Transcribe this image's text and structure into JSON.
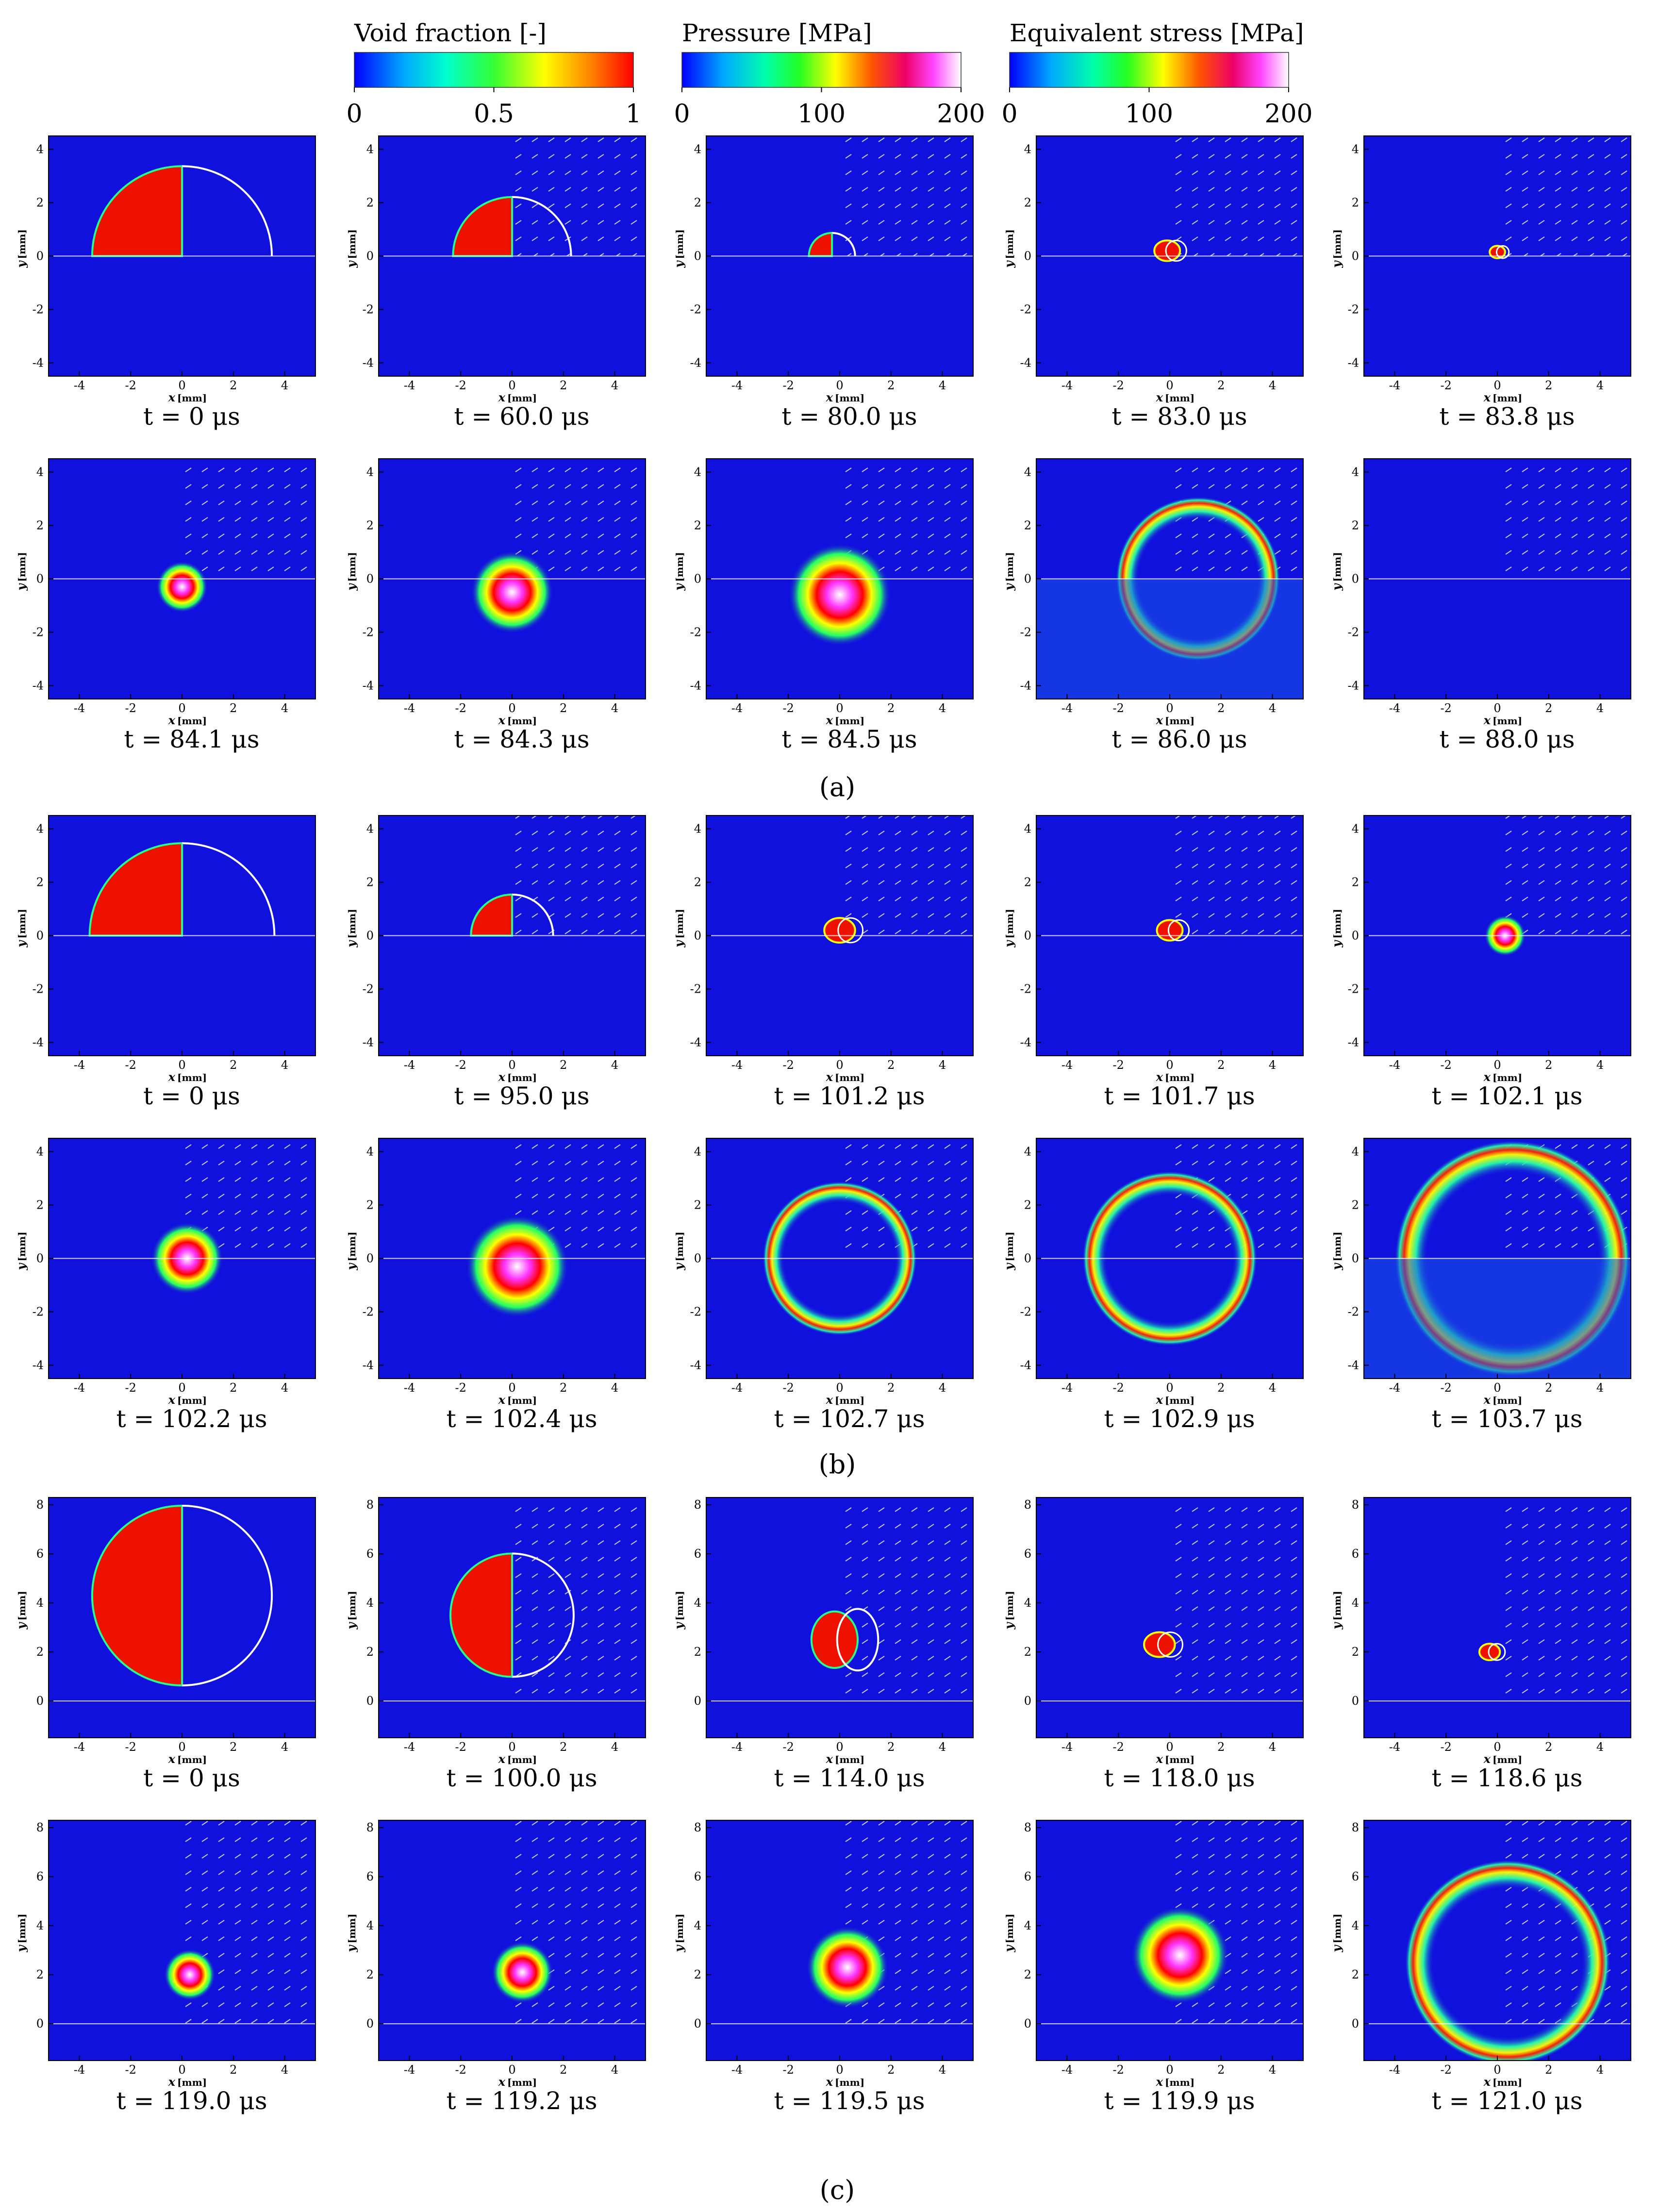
{
  "colorbars": [
    {
      "title": "Void fraction [-]",
      "ticks": [
        "0",
        "0.5",
        "1"
      ],
      "scale": "void"
    },
    {
      "title": "Pressure [MPa]",
      "ticks": [
        "0",
        "100",
        "200"
      ],
      "scale": "pressure"
    },
    {
      "title": "Equivalent stress [MPa]",
      "ticks": [
        "0",
        "100",
        "200"
      ],
      "scale": "stress"
    }
  ],
  "axis": {
    "x_label": "x",
    "y_label": "y",
    "unit": "[mm]"
  },
  "groups": [
    {
      "label": "(a)",
      "letter": "a",
      "x_ticks": [
        "-4",
        "-2",
        "0",
        "2",
        "4"
      ],
      "y_ticks": [
        "4",
        "2",
        "0",
        "-2",
        "-4"
      ],
      "y_range": [
        -4.5,
        4.5
      ],
      "wall_y": 0,
      "rows": [
        [
          "t = 0 μs",
          "t = 60.0 μs",
          "t = 80.0 μs",
          "t = 83.0 μs",
          "t = 83.8 μs"
        ],
        [
          "t = 84.1 μs",
          "t = 84.3 μs",
          "t = 84.5 μs",
          "t = 86.0 μs",
          "t = 88.0 μs"
        ]
      ]
    },
    {
      "label": "(b)",
      "letter": "b",
      "x_ticks": [
        "-4",
        "-2",
        "0",
        "2",
        "4"
      ],
      "y_ticks": [
        "4",
        "2",
        "0",
        "-2",
        "-4"
      ],
      "y_range": [
        -4.5,
        4.5
      ],
      "wall_y": 0,
      "rows": [
        [
          "t = 0 μs",
          "t = 95.0 μs",
          "t = 101.2 μs",
          "t = 101.7 μs",
          "t = 102.1 μs"
        ],
        [
          "t = 102.2 μs",
          "t = 102.4 μs",
          "t = 102.7 μs",
          "t = 102.9 μs",
          "t = 103.7 μs"
        ]
      ]
    },
    {
      "label": "(c)",
      "letter": "c",
      "x_ticks": [
        "-4",
        "-2",
        "0",
        "2",
        "4"
      ],
      "y_ticks": [
        "8",
        "6",
        "4",
        "2",
        "0"
      ],
      "y_range": [
        -1.5,
        8.3
      ],
      "wall_y": 0,
      "rows": [
        [
          "t = 0 μs",
          "t = 100.0 μs",
          "t = 114.0 μs",
          "t = 118.0 μs",
          "t = 118.6 μs"
        ],
        [
          "t = 119.0 μs",
          "t = 119.2 μs",
          "t = 119.5 μs",
          "t = 119.9 μs",
          "t = 121.0 μs"
        ]
      ]
    }
  ],
  "colors": {
    "field_background": "#1111dd",
    "bubble_fill": "#ee1100",
    "contour": "#ffffff"
  }
}
